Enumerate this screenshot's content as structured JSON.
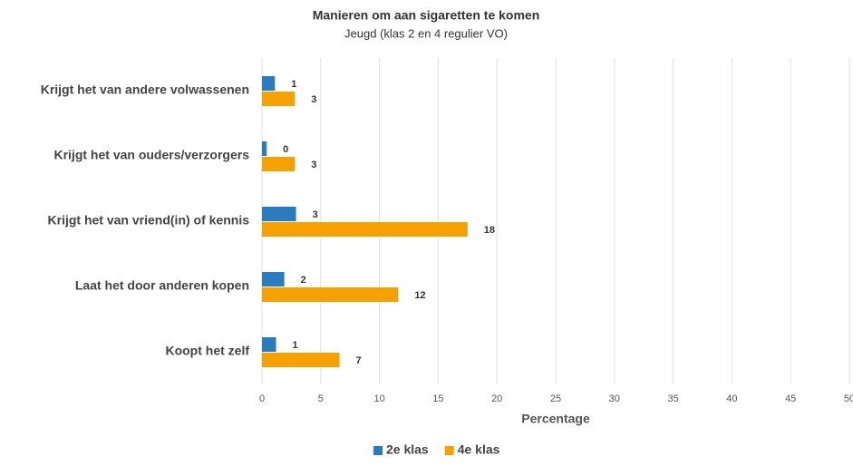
{
  "chart_data": {
    "type": "hbar",
    "title": "Manieren om aan sigaretten te komen",
    "subtitle": "Jeugd (klas 2 en 4 regulier VO)",
    "x_label": "Percentage",
    "categories": [
      "Krijgt het van andere volwassenen",
      "Krijgt het van ouders/verzorgers",
      "Krijgt het van vriend(in) of kennis",
      "Laat het door anderen kopen",
      "Koopt het zelf"
    ],
    "series": [
      {
        "name": "2e klas",
        "color": "#2b7bbf",
        "values": [
          1.1,
          0.4,
          2.9,
          1.9,
          1.2
        ],
        "value_labels": [
          "1",
          "0",
          "3",
          "2",
          "1"
        ]
      },
      {
        "name": "4e klas",
        "color": "#f5a100",
        "values": [
          2.8,
          2.8,
          17.5,
          11.6,
          6.6
        ],
        "value_labels": [
          "3",
          "3",
          "18",
          "12",
          "7"
        ]
      }
    ],
    "xlim": [
      0,
      50
    ],
    "xticks": [
      0,
      5,
      10,
      15,
      20,
      25,
      30,
      35,
      40,
      45,
      50
    ],
    "grid": true,
    "legend": "bottom"
  }
}
